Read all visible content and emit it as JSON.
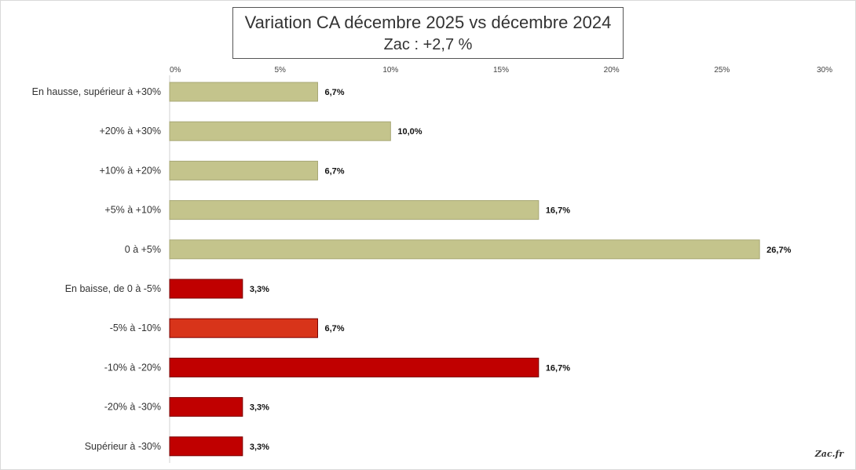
{
  "chart_data": {
    "type": "bar",
    "orientation": "horizontal",
    "title": "Variation CA décembre 2025 vs décembre 2024",
    "subtitle": "Zac : +2,7 %",
    "xlim": [
      0,
      30
    ],
    "x_ticks": [
      "0%",
      "5%",
      "10%",
      "15%",
      "20%",
      "25%",
      "30%"
    ],
    "categories": [
      "En hausse, supérieur à +30%",
      "+20% à +30%",
      "+10% à +20%",
      "+5% à +10%",
      "0 à +5%",
      "En baisse, de 0 à -5%",
      "-5% à -10%",
      "-10% à -20%",
      "-20% à -30%",
      "Supérieur à -30%"
    ],
    "values": [
      6.7,
      10.0,
      6.7,
      16.7,
      26.7,
      3.3,
      6.7,
      16.7,
      3.3,
      3.3
    ],
    "value_labels": [
      "6,7%",
      "10,0%",
      "6,7%",
      "16,7%",
      "26,7%",
      "3,3%",
      "6,7%",
      "16,7%",
      "3,3%",
      "3,3%"
    ],
    "colors": [
      "#c4c48c",
      "#c4c48c",
      "#c4c48c",
      "#c4c48c",
      "#c4c48c",
      "#c00000",
      "#d8341a",
      "#c00000",
      "#c00000",
      "#c00000"
    ],
    "grid": false,
    "legend": "none"
  },
  "watermark": "Zac.fr"
}
